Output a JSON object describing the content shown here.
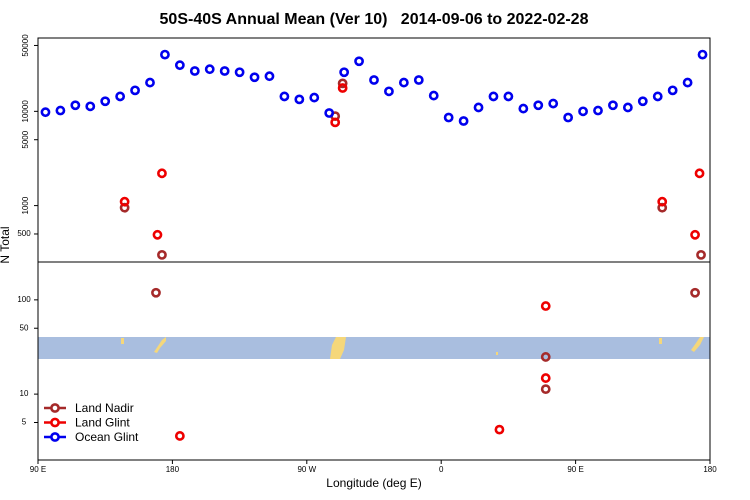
{
  "chart_data": {
    "type": "scatter",
    "title": "50S-40S Annual Mean (Ver 10)   2014-09-06 to 2022-02-28",
    "xlabel": "Longitude (deg E)",
    "ylabel": "N Total",
    "xlim": [
      90,
      540
    ],
    "xticks": [
      {
        "value": 90,
        "label": "90 E"
      },
      180,
      {
        "value": 270,
        "label": "90 W"
      },
      {
        "value": 360,
        "label": "0"
      },
      {
        "value": 450,
        "label": "90 E"
      },
      {
        "value": 540,
        "label": "180"
      }
    ],
    "ylim": [
      2,
      60000
    ],
    "yscale": "log",
    "yticks": [
      5,
      10,
      50,
      100,
      500,
      1000,
      5000,
      10000,
      50000
    ],
    "legend": "lower left",
    "series": [
      {
        "name": "Land Nadir",
        "color": "#a52a2a",
        "x": [
          148,
          173,
          169,
          289,
          294,
          430,
          430,
          508,
          534,
          530
        ],
        "values": [
          950,
          300,
          119,
          8900,
          19800,
          24.8,
          11.3,
          950,
          300,
          119
        ]
      },
      {
        "name": "Land Glint",
        "color": "#ee0000",
        "x": [
          148,
          173,
          170,
          185,
          289,
          294,
          399,
          430,
          430,
          508,
          533,
          530
        ],
        "values": [
          1100,
          2200,
          490,
          3.6,
          7640,
          17700,
          4.2,
          86,
          14.8,
          1100,
          2200,
          490
        ]
      },
      {
        "name": "Ocean Glint",
        "color": "#0000ee",
        "x": [
          95,
          105,
          115,
          125,
          135,
          145,
          155,
          165,
          175,
          185,
          195,
          205,
          215,
          225,
          235,
          245,
          255,
          265,
          275,
          285,
          295,
          305,
          315,
          325,
          335,
          345,
          355,
          365,
          375,
          385,
          395,
          405,
          415,
          425,
          435,
          445,
          455,
          465,
          475,
          485,
          495,
          505,
          515,
          525,
          535
        ],
        "values": [
          9800,
          10200,
          11600,
          11300,
          12800,
          14400,
          16700,
          20200,
          40000,
          30900,
          26800,
          28000,
          26800,
          26000,
          23000,
          23600,
          14400,
          13400,
          14000,
          9600,
          26000,
          34000,
          21500,
          16300,
          20200,
          21500,
          14700,
          8600,
          7900,
          11000,
          14400,
          14400,
          10700,
          11600,
          12100,
          8600,
          10000,
          10200,
          11600,
          11000,
          12800,
          14400,
          16700,
          20200,
          40000
        ]
      }
    ]
  }
}
